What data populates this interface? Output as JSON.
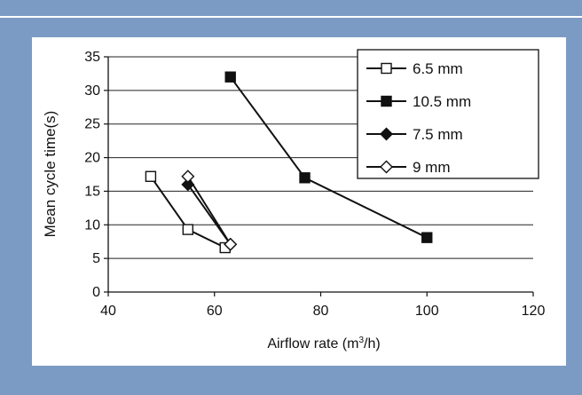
{
  "chart_data": {
    "type": "scatter",
    "xlabel_main": "Airflow rate (m",
    "xlabel_sup": "3",
    "xlabel_end": "/h)",
    "ylabel": "Mean cycle time(s)",
    "xlim": [
      40,
      120
    ],
    "ylim": [
      0,
      35
    ],
    "x_ticks": [
      40,
      60,
      80,
      100,
      120
    ],
    "y_ticks": [
      0,
      5,
      10,
      15,
      20,
      25,
      30,
      35
    ],
    "grid": "horizontal",
    "legend_position": "top-right",
    "series": [
      {
        "name": "6.5 mm",
        "marker": "open-square",
        "color": "#111111",
        "points": [
          {
            "x": 48,
            "y": 17.2
          },
          {
            "x": 55,
            "y": 9.3
          },
          {
            "x": 62,
            "y": 6.6
          }
        ]
      },
      {
        "name": "10.5 mm",
        "marker": "filled-square",
        "color": "#111111",
        "points": [
          {
            "x": 63,
            "y": 32
          },
          {
            "x": 77,
            "y": 17
          },
          {
            "x": 100,
            "y": 8.1
          }
        ]
      },
      {
        "name": "7.5 mm",
        "marker": "filled-diamond",
        "color": "#111111",
        "points": [
          {
            "x": 55,
            "y": 16
          },
          {
            "x": 63,
            "y": 7.1
          }
        ]
      },
      {
        "name": "9 mm",
        "marker": "open-diamond",
        "color": "#111111",
        "points": [
          {
            "x": 55,
            "y": 17.2
          },
          {
            "x": 63,
            "y": 7.1
          }
        ]
      }
    ]
  }
}
